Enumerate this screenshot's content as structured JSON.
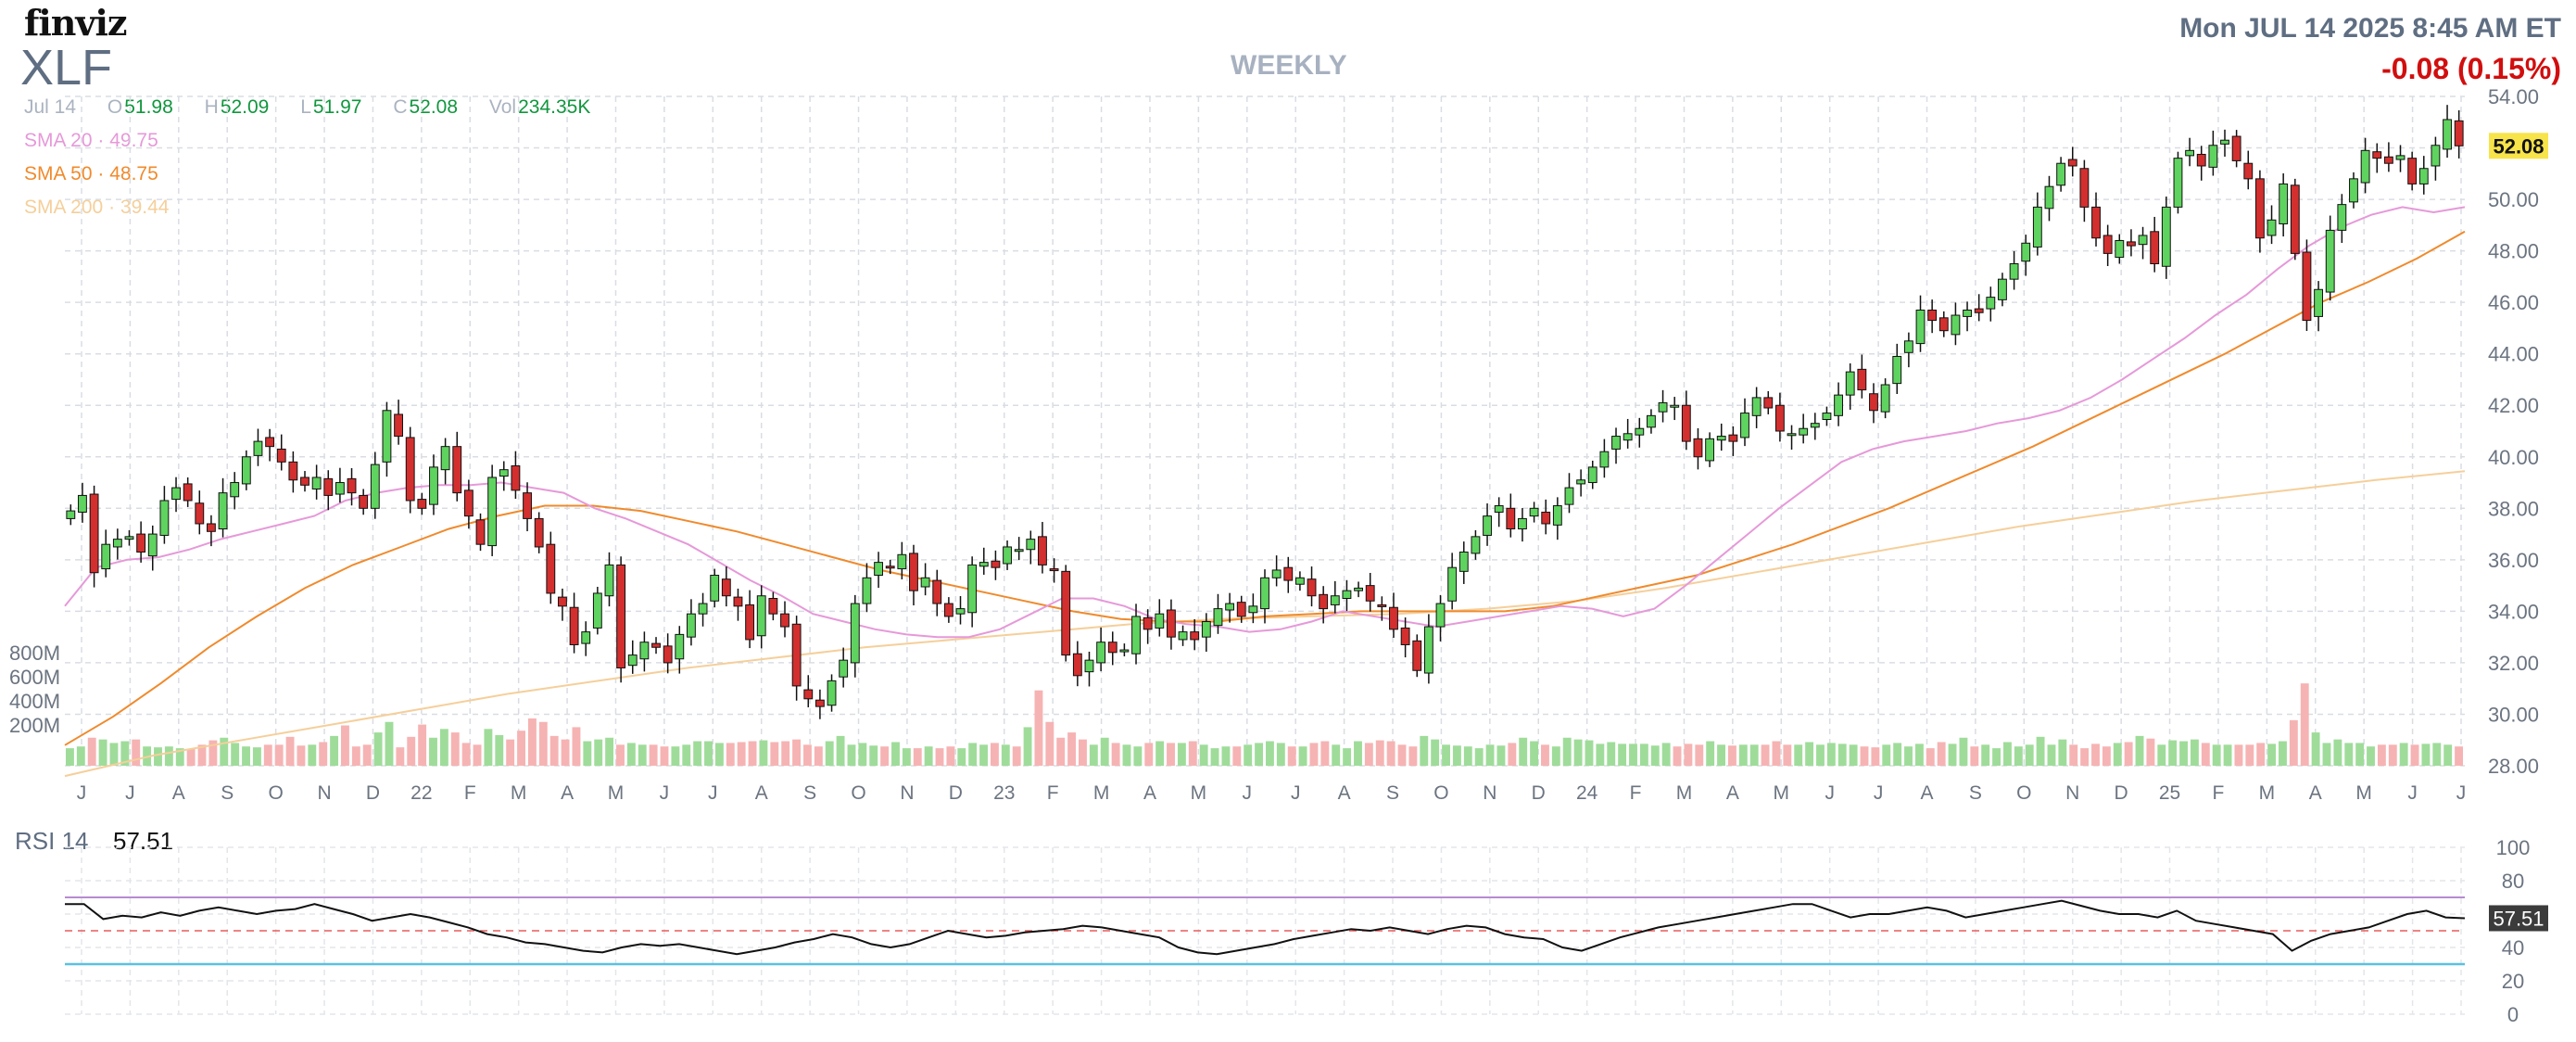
{
  "header": {
    "logo": "finviz",
    "ticker": "XLF",
    "period": "WEEKLY",
    "datetime": "Mon JUL 14 2025 8:45 AM ET",
    "change": "-0.08 (0.15%)"
  },
  "ohlc": {
    "date": "Jul 14",
    "open_label": "O",
    "open": "51.98",
    "high_label": "H",
    "high": "52.09",
    "low_label": "L",
    "low": "51.97",
    "close_label": "C",
    "close": "52.08",
    "vol_label": "Vol",
    "volume": "234.35K"
  },
  "sma": [
    {
      "label": "SMA 20",
      "value": "49.75",
      "color": "#e699d9"
    },
    {
      "label": "SMA 50",
      "value": "48.75",
      "color": "#f08a2c"
    },
    {
      "label": "SMA 200",
      "value": "39.44",
      "color": "#f5cf9a"
    }
  ],
  "rsi": {
    "label": "RSI 14",
    "value": "57.51"
  },
  "colors": {
    "up": "#2ca02c",
    "down": "#d01010",
    "upfill": "#5fd35f",
    "downfill": "#d32f2f",
    "rsi_area": "#c97ad9",
    "oversold": "#5bc0e0",
    "overbought": "#b88ad2",
    "price_tag": "#f7e34a"
  },
  "chart_data": {
    "type": "candlestick",
    "price_ticks": [
      "54.00",
      "52.00",
      "50.00",
      "48.00",
      "46.00",
      "44.00",
      "42.00",
      "40.00",
      "38.00",
      "36.00",
      "34.00",
      "32.00",
      "30.00",
      "28.00"
    ],
    "price_range": [
      28,
      54
    ],
    "volume_ticks": [
      "800M",
      "600M",
      "400M",
      "200M"
    ],
    "rsi_ticks": [
      "100",
      "80",
      "60",
      "40",
      "20",
      "0"
    ],
    "rsi_range": [
      0,
      100
    ],
    "rsi_levels": [
      30,
      70
    ],
    "last_price": "52.08",
    "last_rsi": "57.51",
    "months": [
      "J",
      "J",
      "A",
      "S",
      "O",
      "N",
      "D",
      "22",
      "F",
      "M",
      "A",
      "M",
      "J",
      "J",
      "A",
      "S",
      "O",
      "N",
      "D",
      "23",
      "F",
      "M",
      "A",
      "M",
      "J",
      "J",
      "A",
      "S",
      "O",
      "N",
      "D",
      "24",
      "F",
      "M",
      "A",
      "M",
      "J",
      "J",
      "A",
      "S",
      "O",
      "N",
      "D",
      "25",
      "F",
      "M",
      "A",
      "M",
      "J",
      "J"
    ],
    "weekly_closes": [
      37.9,
      38.5,
      35.5,
      36.6,
      36.8,
      36.9,
      36.3,
      37.0,
      38.3,
      38.8,
      38.3,
      37.4,
      37.1,
      38.6,
      39.0,
      40.0,
      40.6,
      40.4,
      39.8,
      39.1,
      38.9,
      39.2,
      38.5,
      39.0,
      38.6,
      38.0,
      39.7,
      41.8,
      40.8,
      38.3,
      38.0,
      39.6,
      40.4,
      38.6,
      37.7,
      36.6,
      39.2,
      39.5,
      38.7,
      37.6,
      36.5,
      34.7,
      34.2,
      32.7,
      33.2,
      34.7,
      35.8,
      31.8,
      32.3,
      32.8,
      32.6,
      32.0,
      33.1,
      33.9,
      34.3,
      35.4,
      34.6,
      34.2,
      32.9,
      34.6,
      33.9,
      33.4,
      31.1,
      30.6,
      30.3,
      31.3,
      32.1,
      34.3,
      35.3,
      35.9,
      35.7,
      36.2,
      34.8,
      35.3,
      34.3,
      33.8,
      34.1,
      35.8,
      35.9,
      35.7,
      36.5,
      36.4,
      36.8,
      35.8,
      35.6,
      32.3,
      31.5,
      32.1,
      32.8,
      32.4,
      32.5,
      33.8,
      33.3,
      33.9,
      33.0,
      33.2,
      32.9,
      33.6,
      34.1,
      34.3,
      33.8,
      34.2,
      35.3,
      35.6,
      35.2,
      35.3,
      34.6,
      34.1,
      34.6,
      34.8,
      34.9,
      34.4,
      34.2,
      33.3,
      32.7,
      31.7,
      33.4,
      34.3,
      35.7,
      36.3,
      36.9,
      37.7,
      38.1,
      37.2,
      37.6,
      38.0,
      37.4,
      38.1,
      38.8,
      39.1,
      39.6,
      40.2,
      40.8,
      40.9,
      41.1,
      41.6,
      42.1,
      42.0,
      40.6,
      40.0,
      40.7,
      40.8,
      40.6,
      41.7,
      42.3,
      41.9,
      41.0,
      40.9,
      41.1,
      41.3,
      41.7,
      42.4,
      43.3,
      42.6,
      41.8,
      42.8,
      43.9,
      44.5,
      45.7,
      45.3,
      44.9,
      45.5,
      45.7,
      45.6,
      46.2,
      46.9,
      47.5,
      48.3,
      49.7,
      50.5,
      51.4,
      51.3,
      49.7,
      48.5,
      47.9,
      48.4,
      48.2,
      48.6,
      47.5,
      49.7,
      51.6,
      51.9,
      51.3,
      52.1,
      52.3,
      51.5,
      50.8,
      48.5,
      49.2,
      50.6,
      47.9,
      45.3,
      46.5,
      48.8,
      49.8,
      50.8,
      51.9,
      51.6,
      51.4,
      51.7,
      50.6,
      51.2,
      52.1,
      53.1,
      52.08
    ],
    "sma20_approx": [
      34.2,
      35.7,
      36.0,
      36.1,
      36.4,
      36.8,
      37.1,
      37.4,
      37.7,
      38.3,
      38.6,
      38.8,
      38.9,
      38.9,
      39.0,
      38.8,
      38.6,
      38.0,
      37.6,
      37.1,
      36.6,
      35.9,
      35.2,
      34.6,
      33.9,
      33.6,
      33.3,
      33.1,
      33.0,
      33.0,
      33.3,
      33.9,
      34.5,
      34.5,
      34.2,
      33.7,
      33.5,
      33.4,
      33.2,
      33.3,
      33.6,
      34.0,
      33.8,
      33.6,
      33.4,
      33.6,
      33.8,
      34.0,
      34.2,
      34.1,
      33.8,
      34.1,
      35.0,
      36.0,
      37.0,
      38.0,
      38.9,
      39.8,
      40.3,
      40.6,
      40.8,
      41.0,
      41.3,
      41.5,
      41.8,
      42.3,
      43.0,
      43.8,
      44.6,
      45.5,
      46.3,
      47.3,
      48.2,
      48.9,
      49.4,
      49.7,
      49.5,
      49.7
    ],
    "sma50_approx": [
      28.8,
      29.9,
      31.2,
      32.6,
      33.8,
      34.9,
      35.8,
      36.5,
      37.2,
      37.7,
      38.1,
      38.1,
      37.9,
      37.5,
      37.1,
      36.6,
      36.1,
      35.6,
      35.2,
      34.8,
      34.4,
      34.0,
      33.7,
      33.6,
      33.6,
      33.8,
      33.9,
      34.0,
      34.0,
      34.0,
      34.0,
      34.2,
      34.6,
      35.0,
      35.4,
      36.0,
      36.6,
      37.3,
      38.0,
      38.8,
      39.6,
      40.4,
      41.3,
      42.2,
      43.1,
      44.0,
      45.0,
      46.0,
      46.8,
      47.7,
      48.75
    ],
    "sma200_approx": [
      27.6,
      28.4,
      29.0,
      29.6,
      30.2,
      30.8,
      31.3,
      31.8,
      32.2,
      32.6,
      32.9,
      33.2,
      33.5,
      33.7,
      33.8,
      33.9,
      34.1,
      34.4,
      34.9,
      35.5,
      36.1,
      36.7,
      37.3,
      37.8,
      38.3,
      38.7,
      39.1,
      39.44
    ],
    "volume_m": [
      100,
      110,
      160,
      150,
      130,
      140,
      150,
      110,
      105,
      110,
      100,
      95,
      120,
      145,
      160,
      130,
      110,
      105,
      120,
      120,
      165,
      115,
      120,
      135,
      170,
      230,
      110,
      120,
      190,
      250,
      105,
      165,
      235,
      160,
      210,
      190,
      130,
      120,
      210,
      175,
      150,
      200,
      270,
      250,
      170,
      150,
      220,
      140,
      150,
      160,
      120,
      130,
      120,
      120,
      110,
      110,
      120,
      140,
      140,
      130,
      130,
      135,
      140,
      145,
      135,
      140,
      150,
      120,
      110,
      140,
      170,
      120,
      130,
      115,
      110,
      135,
      100,
      100,
      110,
      100,
      110,
      100,
      130,
      120,
      130,
      120,
      110,
      220,
      430,
      250,
      160,
      190,
      150,
      120,
      160,
      130,
      120,
      110,
      130,
      140,
      130,
      130,
      140,
      120,
      100,
      110,
      110,
      120,
      130,
      140,
      130,
      110,
      110,
      130,
      140,
      120,
      100,
      140,
      130,
      145,
      140,
      120,
      110,
      170,
      150,
      120,
      115,
      110,
      100,
      120,
      115,
      130,
      160,
      140,
      120,
      110,
      160,
      150,
      145,
      125,
      135,
      125,
      125,
      125,
      115,
      130,
      110,
      125,
      120,
      140,
      120,
      115,
      120,
      120,
      120,
      140,
      120,
      120,
      135,
      120,
      130,
      125,
      120,
      110,
      105,
      120,
      130,
      110,
      125,
      100,
      135,
      125,
      160,
      110,
      120,
      100,
      135,
      110,
      120,
      165,
      120,
      150,
      120,
      100,
      125,
      110,
      130,
      135,
      170,
      155,
      120,
      145,
      140,
      150,
      130,
      120,
      120,
      120,
      120,
      130,
      125,
      140,
      260,
      470,
      190,
      130,
      150,
      130,
      130,
      110,
      120,
      120,
      130,
      120,
      125,
      130,
      120,
      110
    ],
    "rsi_approx": [
      66,
      66,
      57,
      59,
      58,
      61,
      59,
      62,
      64,
      62,
      60,
      62,
      63,
      66,
      63,
      60,
      56,
      58,
      60,
      58,
      55,
      52,
      48,
      46,
      43,
      42,
      40,
      38,
      37,
      40,
      42,
      41,
      42,
      40,
      38,
      36,
      38,
      40,
      43,
      45,
      48,
      46,
      42,
      40,
      42,
      46,
      50,
      48,
      46,
      47,
      49,
      50,
      51,
      53,
      52,
      50,
      48,
      46,
      40,
      37,
      36,
      38,
      40,
      42,
      45,
      47,
      49,
      51,
      50,
      52,
      50,
      48,
      51,
      53,
      52,
      48,
      46,
      45,
      40,
      38,
      42,
      46,
      49,
      52,
      54,
      56,
      58,
      60,
      62,
      64,
      66,
      66,
      62,
      58,
      60,
      60,
      62,
      64,
      62,
      58,
      60,
      62,
      64,
      66,
      68,
      65,
      62,
      60,
      60,
      58,
      62,
      56,
      54,
      52,
      50,
      48,
      38,
      44,
      48,
      50,
      52,
      56,
      60,
      62,
      58,
      57.51
    ]
  }
}
